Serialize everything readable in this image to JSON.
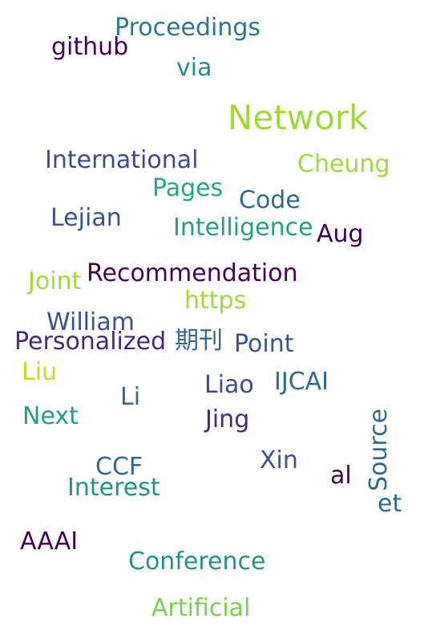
{
  "cloud": {
    "words": [
      {
        "text": "Proceedings",
        "color": "#2A788E"
      },
      {
        "text": "github",
        "color": "#440154"
      },
      {
        "text": "via",
        "color": "#21918C"
      },
      {
        "text": "Network",
        "color": "#A0DA39"
      },
      {
        "text": "International",
        "color": "#3E4A89"
      },
      {
        "text": "Cheung",
        "color": "#A0DA39"
      },
      {
        "text": "Pages",
        "color": "#22A884"
      },
      {
        "text": "Code",
        "color": "#31688E"
      },
      {
        "text": "Lejian",
        "color": "#3B528B"
      },
      {
        "text": "Intelligence",
        "color": "#1F9E89"
      },
      {
        "text": "Aug",
        "color": "#440154"
      },
      {
        "text": "Joint",
        "color": "#A0DA39"
      },
      {
        "text": "Recommendation",
        "color": "#440154"
      },
      {
        "text": "https",
        "color": "#A0DA39"
      },
      {
        "text": "William",
        "color": "#3B528B"
      },
      {
        "text": "Personalized",
        "color": "#482878"
      },
      {
        "text": "期刊",
        "color": "#31688E"
      },
      {
        "text": "Point",
        "color": "#3B528B"
      },
      {
        "text": "Liu",
        "color": "#BDDF26"
      },
      {
        "text": "Li",
        "color": "#31688E"
      },
      {
        "text": "Liao",
        "color": "#3E4A89"
      },
      {
        "text": "IJCAI",
        "color": "#31688E"
      },
      {
        "text": "Next",
        "color": "#1F9E89"
      },
      {
        "text": "Jing",
        "color": "#482878"
      },
      {
        "text": "Source",
        "color": "#31688E"
      },
      {
        "text": "Xin",
        "color": "#3B528B"
      },
      {
        "text": "CCF",
        "color": "#31688E"
      },
      {
        "text": "al",
        "color": "#440154"
      },
      {
        "text": "Interest",
        "color": "#21918C"
      },
      {
        "text": "et",
        "color": "#31688E"
      },
      {
        "text": "AAAI",
        "color": "#440154"
      },
      {
        "text": "Conference",
        "color": "#21918C"
      },
      {
        "text": "Artificial",
        "color": "#7AD151"
      }
    ]
  }
}
